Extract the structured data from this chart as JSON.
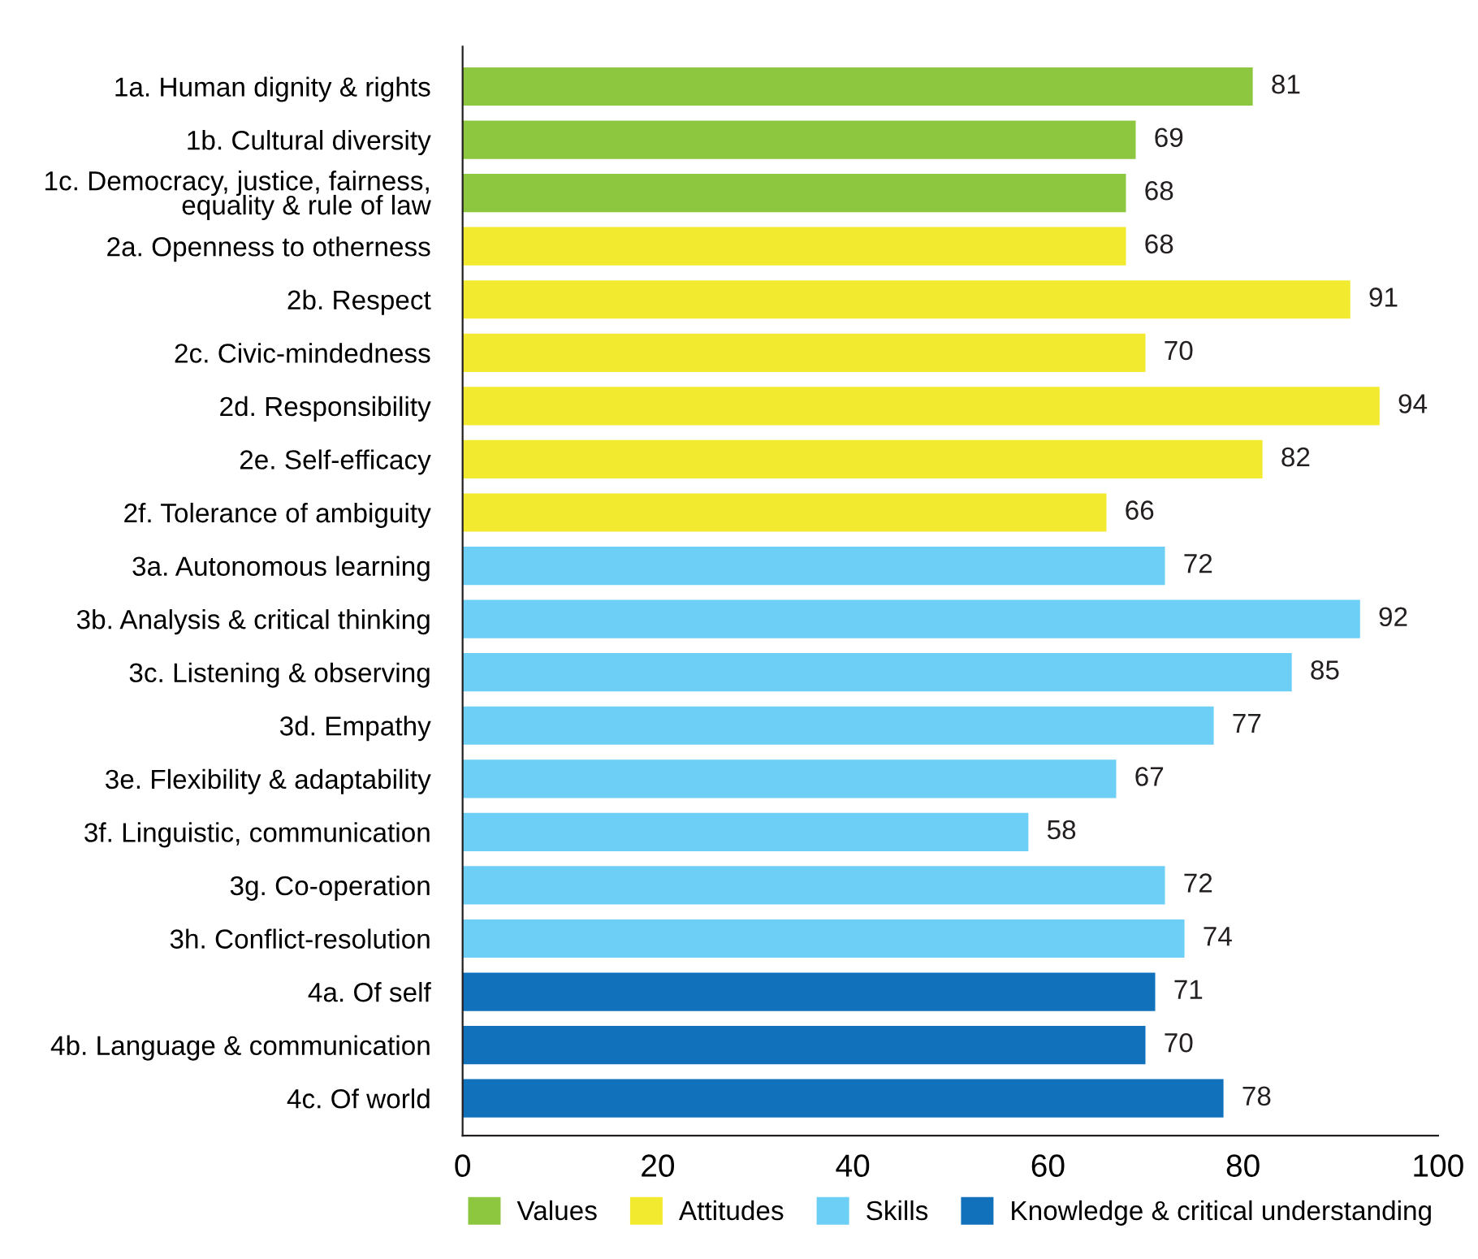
{
  "chart_data": {
    "type": "bar",
    "orientation": "horizontal",
    "categories": [
      "1a. Human dignity & rights",
      "1b. Cultural diversity",
      "1c. Democracy, justice, fairness,\nequality & rule of law",
      "2a. Openness to otherness",
      "2b. Respect",
      "2c. Civic-mindedness",
      "2d. Responsibility",
      "2e. Self-efficacy",
      "2f. Tolerance of ambiguity",
      "3a. Autonomous learning",
      "3b. Analysis & critical thinking",
      "3c. Listening & observing",
      "3d. Empathy",
      "3e. Flexibility & adaptability",
      "3f. Linguistic, communication",
      "3g. Co-operation",
      "3h. Conflict-resolution",
      "4a. Of self",
      "4b. Language & communication",
      "4c. Of world"
    ],
    "series": [
      {
        "name": "Values",
        "color": "#8dc63f",
        "values": [
          81,
          69,
          68,
          null,
          null,
          null,
          null,
          null,
          null,
          null,
          null,
          null,
          null,
          null,
          null,
          null,
          null,
          null,
          null,
          null
        ]
      },
      {
        "name": "Attitudes",
        "color": "#f2ea2e",
        "values": [
          null,
          null,
          null,
          68,
          91,
          70,
          94,
          82,
          66,
          null,
          null,
          null,
          null,
          null,
          null,
          null,
          null,
          null,
          null,
          null
        ]
      },
      {
        "name": "Skills",
        "color": "#6dcff6",
        "values": [
          null,
          null,
          null,
          null,
          null,
          null,
          null,
          null,
          null,
          72,
          92,
          85,
          77,
          67,
          58,
          72,
          74,
          null,
          null,
          null
        ]
      },
      {
        "name": "Knowledge & critical understanding",
        "color": "#1172bb",
        "values": [
          null,
          null,
          null,
          null,
          null,
          null,
          null,
          null,
          null,
          null,
          null,
          null,
          null,
          null,
          null,
          null,
          null,
          71,
          70,
          78
        ]
      }
    ],
    "xlim": [
      0,
      100
    ],
    "xticks": [
      0,
      20,
      40,
      60,
      80,
      100
    ],
    "data_labels": true,
    "legend": "bottom",
    "grid": false
  }
}
